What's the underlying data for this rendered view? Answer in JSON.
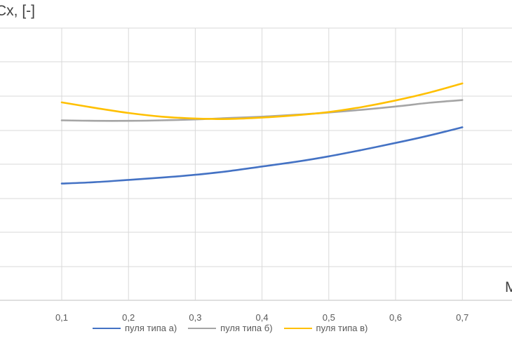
{
  "chart_data": {
    "type": "line",
    "ylabel": "Cx, [-]",
    "xlabel": "M",
    "x": [
      0.1,
      0.2,
      0.3,
      0.4,
      0.5,
      0.6,
      0.7
    ],
    "x_tick_labels": [
      "0,1",
      "0,2",
      "0,3",
      "0,4",
      "0,5",
      "0,6",
      "0,7"
    ],
    "xlim": [
      0.0,
      0.75
    ],
    "grid": true,
    "legend_position": "bottom",
    "series": [
      {
        "name": "пуля типа а)",
        "color": "#4472C4",
        "points": [
          [
            0.1,
            0.453
          ],
          [
            0.15,
            0.456
          ],
          [
            0.2,
            0.461
          ],
          [
            0.25,
            0.466
          ],
          [
            0.3,
            0.472
          ],
          [
            0.35,
            0.48
          ],
          [
            0.4,
            0.49
          ],
          [
            0.45,
            0.5
          ],
          [
            0.5,
            0.512
          ],
          [
            0.55,
            0.526
          ],
          [
            0.6,
            0.541
          ],
          [
            0.65,
            0.557
          ],
          [
            0.7,
            0.575
          ]
        ]
      },
      {
        "name": "пуля типа б)",
        "color": "#A5A5A5",
        "points": [
          [
            0.1,
            0.59
          ],
          [
            0.15,
            0.589
          ],
          [
            0.2,
            0.589
          ],
          [
            0.25,
            0.59
          ],
          [
            0.3,
            0.592
          ],
          [
            0.35,
            0.595
          ],
          [
            0.4,
            0.598
          ],
          [
            0.45,
            0.602
          ],
          [
            0.5,
            0.607
          ],
          [
            0.55,
            0.613
          ],
          [
            0.6,
            0.62
          ],
          [
            0.65,
            0.628
          ],
          [
            0.7,
            0.634
          ]
        ]
      },
      {
        "name": "пуля типа в)",
        "color": "#FFC000",
        "points": [
          [
            0.1,
            0.629
          ],
          [
            0.15,
            0.617
          ],
          [
            0.2,
            0.606
          ],
          [
            0.25,
            0.598
          ],
          [
            0.3,
            0.594
          ],
          [
            0.35,
            0.593
          ],
          [
            0.4,
            0.596
          ],
          [
            0.45,
            0.601
          ],
          [
            0.5,
            0.608
          ],
          [
            0.55,
            0.619
          ],
          [
            0.6,
            0.633
          ],
          [
            0.65,
            0.65
          ],
          [
            0.7,
            0.67
          ]
        ]
      }
    ]
  }
}
